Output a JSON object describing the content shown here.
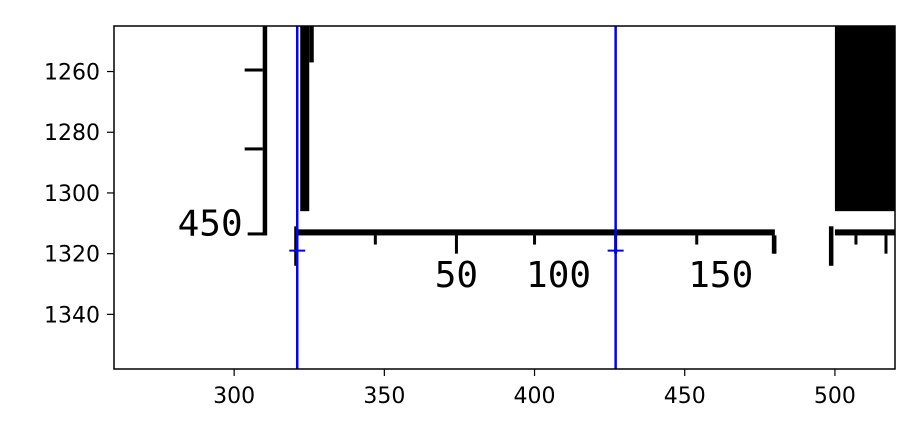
{
  "chart_data": {
    "type": "image",
    "title": "",
    "xlabel": "",
    "ylabel": "",
    "xlim": [
      260,
      520
    ],
    "ylim": [
      1358,
      1245
    ],
    "x_ticks": [
      300,
      350,
      400,
      450,
      500
    ],
    "y_ticks": [
      1260,
      1280,
      1300,
      1320,
      1340
    ],
    "grid": false,
    "colors": {
      "image_ink": "#000000",
      "marker": "#0000ff",
      "background": "#ffffff"
    },
    "vertical_lines": [
      321,
      427
    ],
    "markers": [
      {
        "x": 321,
        "y": 1319
      },
      {
        "x": 427,
        "y": 1319
      }
    ],
    "image_text": [
      {
        "text": "450",
        "x": 292,
        "y": 1314
      },
      {
        "text": "50",
        "x": 374,
        "y": 1331
      },
      {
        "text": "100",
        "x": 408,
        "y": 1331
      },
      {
        "text": "150",
        "x": 462,
        "y": 1331
      }
    ]
  }
}
